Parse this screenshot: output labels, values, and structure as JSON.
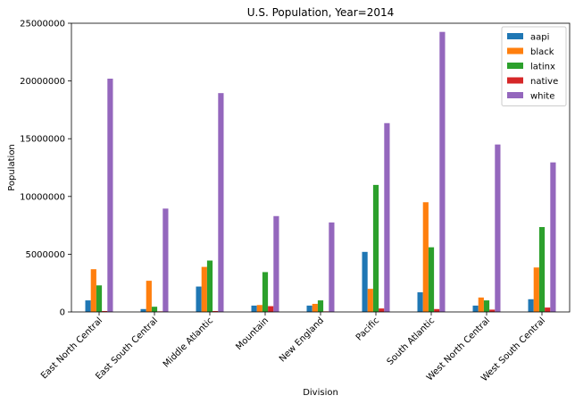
{
  "chart_data": {
    "type": "bar",
    "title": "U.S. Population, Year=2014",
    "xlabel": "Division",
    "ylabel": "Population",
    "ylim": [
      0,
      25000000
    ],
    "yticks": [
      0,
      5000000,
      10000000,
      15000000,
      20000000,
      25000000
    ],
    "ytick_labels": [
      "0",
      "5000000",
      "10000000",
      "15000000",
      "20000000",
      "25000000"
    ],
    "grid": false,
    "legend_position": "top-right",
    "categories": [
      "East North Central",
      "East South Central",
      "Middle Atlantic",
      "Mountain",
      "New England",
      "Pacific",
      "South Atlantic",
      "West North Central",
      "West South Central"
    ],
    "series": [
      {
        "name": "aapi",
        "color": "#1f77b4",
        "values": [
          1000000,
          250000,
          2200000,
          550000,
          550000,
          5200000,
          1700000,
          550000,
          1100000
        ]
      },
      {
        "name": "black",
        "color": "#ff7f0e",
        "values": [
          3700000,
          2700000,
          3900000,
          600000,
          700000,
          2000000,
          9500000,
          1250000,
          3850000
        ]
      },
      {
        "name": "latinx",
        "color": "#2ca02c",
        "values": [
          2300000,
          450000,
          4450000,
          3450000,
          1000000,
          11000000,
          5600000,
          1000000,
          7350000
        ]
      },
      {
        "name": "native",
        "color": "#d62728",
        "values": [
          80000,
          50000,
          80000,
          500000,
          50000,
          300000,
          250000,
          200000,
          380000
        ]
      },
      {
        "name": "white",
        "color": "#9467bd",
        "values": [
          20200000,
          8950000,
          18950000,
          8300000,
          7750000,
          16350000,
          24250000,
          14500000,
          12950000
        ]
      }
    ]
  }
}
